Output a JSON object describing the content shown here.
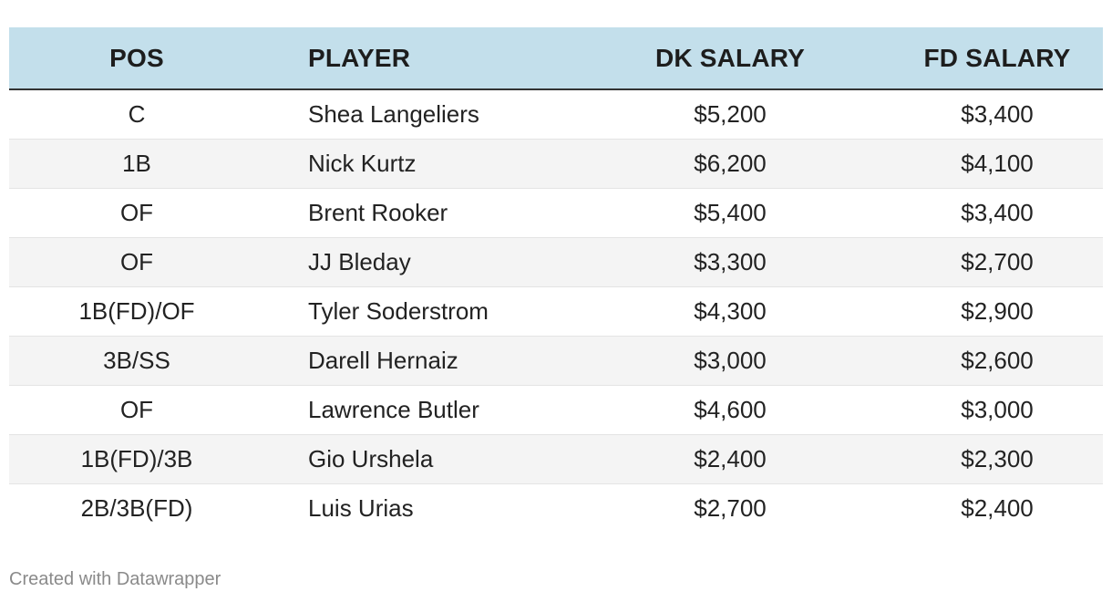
{
  "chart_data": {
    "type": "table",
    "columns": [
      "POS",
      "PLAYER",
      "DK SALARY",
      "FD SALARY"
    ],
    "rows": [
      [
        "C",
        "Shea Langeliers",
        "$5,200",
        "$3,400"
      ],
      [
        "1B",
        "Nick Kurtz",
        "$6,200",
        "$4,100"
      ],
      [
        "OF",
        "Brent Rooker",
        "$5,400",
        "$3,400"
      ],
      [
        "OF",
        "JJ Bleday",
        "$3,300",
        "$2,700"
      ],
      [
        "1B(FD)/OF",
        "Tyler Soderstrom",
        "$4,300",
        "$2,900"
      ],
      [
        "3B/SS",
        "Darell Hernaiz",
        "$3,000",
        "$2,600"
      ],
      [
        "OF",
        "Lawrence Butler",
        "$4,600",
        "$3,000"
      ],
      [
        "1B(FD)/3B",
        "Gio Urshela",
        "$2,400",
        "$2,300"
      ],
      [
        "2B/3B(FD)",
        "Luis Urias",
        "$2,700",
        "$2,400"
      ]
    ],
    "header_bg": "#c3dfeb",
    "alt_row_bg": "#f4f4f4"
  },
  "footer": {
    "credit": "Created with Datawrapper"
  }
}
